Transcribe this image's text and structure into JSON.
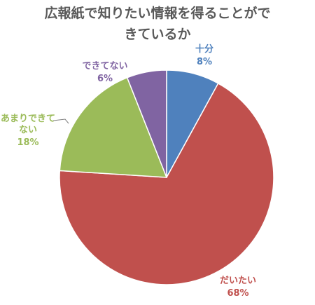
{
  "chart_data": {
    "type": "pie",
    "title_lines": [
      "広報紙で知りたい情報を得ることがで",
      "きているか"
    ],
    "slices": [
      {
        "name": "十分",
        "value": 8,
        "label": "8%",
        "color": "#4F81BD"
      },
      {
        "name": "だいたい",
        "value": 68,
        "label": "68%",
        "color": "#C0504D"
      },
      {
        "name": "あまりできて\nない",
        "value": 18,
        "label": "18%",
        "color": "#9BBB59"
      },
      {
        "name": "できてない",
        "value": 6,
        "label": "6%",
        "color": "#8064A2"
      }
    ],
    "legend": "none",
    "data_labels": "category name and percentage, outside"
  }
}
